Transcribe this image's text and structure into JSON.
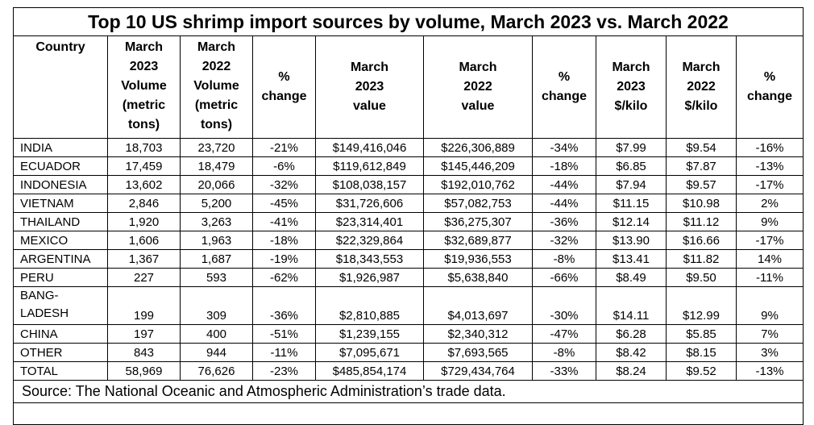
{
  "title": "Top 10 US shrimp import sources by volume, March 2023 vs. March 2022",
  "headers": {
    "country": "Country",
    "vol_2023": "March\n2023\nVolume\n(metric\ntons)",
    "vol_2022": "March\n2022\nVolume\n(metric\ntons)",
    "pct_vol": "%\nchange",
    "val_2023": "March\n2023\nvalue",
    "val_2022": "March\n2022\nvalue",
    "pct_val": "%\nchange",
    "kilo_2023": "March\n2023\n$/kilo",
    "kilo_2022": "March\n2022\n$/kilo",
    "pct_kilo": "%\nchange"
  },
  "rows": [
    {
      "country": "INDIA",
      "vol_2023": "18,703",
      "vol_2022": "23,720",
      "pct_vol": "-21%",
      "val_2023": "$149,416,046",
      "val_2022": "$226,306,889",
      "pct_val": "-34%",
      "kilo_2023": "$7.99",
      "kilo_2022": "$9.54",
      "pct_kilo": "-16%"
    },
    {
      "country": "ECUADOR",
      "vol_2023": "17,459",
      "vol_2022": "18,479",
      "pct_vol": "-6%",
      "val_2023": "$119,612,849",
      "val_2022": "$145,446,209",
      "pct_val": "-18%",
      "kilo_2023": "$6.85",
      "kilo_2022": "$7.87",
      "pct_kilo": "-13%"
    },
    {
      "country": "INDONESIA",
      "vol_2023": "13,602",
      "vol_2022": "20,066",
      "pct_vol": "-32%",
      "val_2023": "$108,038,157",
      "val_2022": "$192,010,762",
      "pct_val": "-44%",
      "kilo_2023": "$7.94",
      "kilo_2022": "$9.57",
      "pct_kilo": "-17%"
    },
    {
      "country": "VIETNAM",
      "vol_2023": "2,846",
      "vol_2022": "5,200",
      "pct_vol": "-45%",
      "val_2023": "$31,726,606",
      "val_2022": "$57,082,753",
      "pct_val": "-44%",
      "kilo_2023": "$11.15",
      "kilo_2022": "$10.98",
      "pct_kilo": "2%"
    },
    {
      "country": "THAILAND",
      "vol_2023": "1,920",
      "vol_2022": "3,263",
      "pct_vol": "-41%",
      "val_2023": "$23,314,401",
      "val_2022": "$36,275,307",
      "pct_val": "-36%",
      "kilo_2023": "$12.14",
      "kilo_2022": "$11.12",
      "pct_kilo": "9%"
    },
    {
      "country": "MEXICO",
      "vol_2023": "1,606",
      "vol_2022": "1,963",
      "pct_vol": "-18%",
      "val_2023": "$22,329,864",
      "val_2022": "$32,689,877",
      "pct_val": "-32%",
      "kilo_2023": "$13.90",
      "kilo_2022": "$16.66",
      "pct_kilo": "-17%"
    },
    {
      "country": "ARGENTINA",
      "vol_2023": "1,367",
      "vol_2022": "1,687",
      "pct_vol": "-19%",
      "val_2023": "$18,343,553",
      "val_2022": "$19,936,553",
      "pct_val": "-8%",
      "kilo_2023": "$13.41",
      "kilo_2022": "$11.82",
      "pct_kilo": "14%"
    },
    {
      "country": "PERU",
      "vol_2023": "227",
      "vol_2022": "593",
      "pct_vol": "-62%",
      "val_2023": "$1,926,987",
      "val_2022": "$5,638,840",
      "pct_val": "-66%",
      "kilo_2023": "$8.49",
      "kilo_2022": "$9.50",
      "pct_kilo": "-11%"
    },
    {
      "country": "BANG-\nLADESH",
      "vol_2023": "199",
      "vol_2022": "309",
      "pct_vol": "-36%",
      "val_2023": "$2,810,885",
      "val_2022": "$4,013,697",
      "pct_val": "-30%",
      "kilo_2023": "$14.11",
      "kilo_2022": "$12.99",
      "pct_kilo": "9%"
    },
    {
      "country": "CHINA",
      "vol_2023": "197",
      "vol_2022": "400",
      "pct_vol": "-51%",
      "val_2023": "$1,239,155",
      "val_2022": "$2,340,312",
      "pct_val": "-47%",
      "kilo_2023": "$6.28",
      "kilo_2022": "$5.85",
      "pct_kilo": "7%"
    },
    {
      "country": "OTHER",
      "vol_2023": "843",
      "vol_2022": "944",
      "pct_vol": "-11%",
      "val_2023": "$7,095,671",
      "val_2022": "$7,693,565",
      "pct_val": "-8%",
      "kilo_2023": "$8.42",
      "kilo_2022": "$8.15",
      "pct_kilo": "3%"
    },
    {
      "country": "TOTAL",
      "vol_2023": "58,969",
      "vol_2022": "76,626",
      "pct_vol": "-23%",
      "val_2023": "$485,854,174",
      "val_2022": "$729,434,764",
      "pct_val": "-33%",
      "kilo_2023": "$8.24",
      "kilo_2022": "$9.52",
      "pct_kilo": "-13%"
    }
  ],
  "source": "Source: The National Oceanic and Atmospheric Administration’s trade data."
}
